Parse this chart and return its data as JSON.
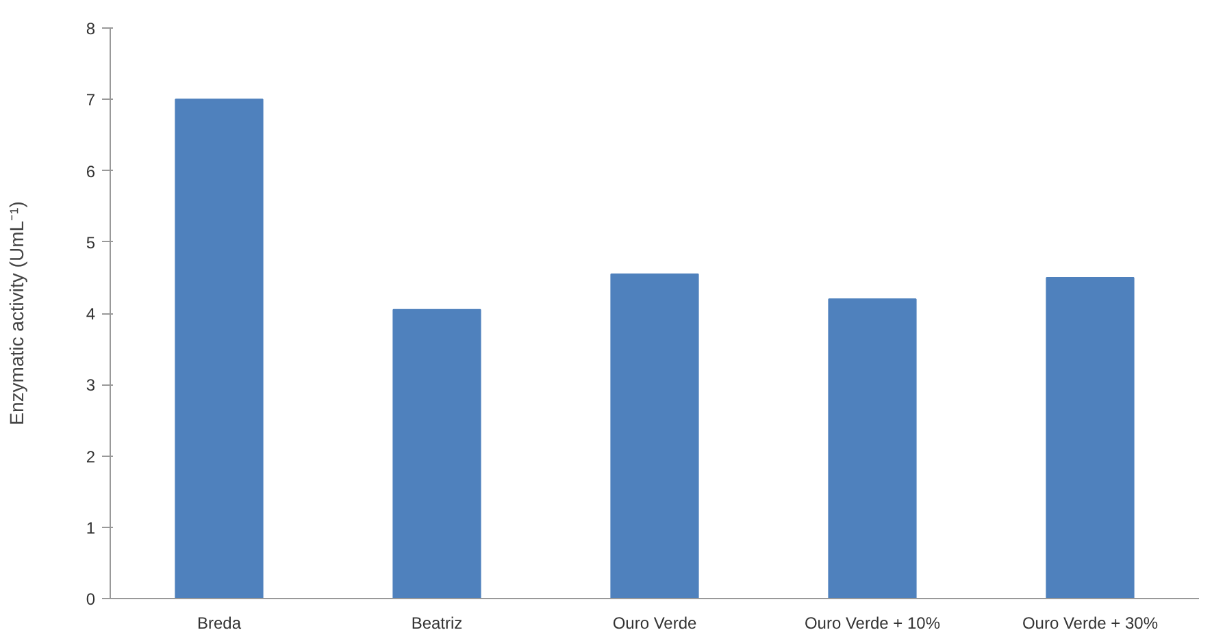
{
  "chart_data": {
    "type": "bar",
    "ylabel": "Enzymatic activity (UmL⁻¹)",
    "categories": [
      "Breda",
      "Beatriz",
      "Ouro Verde",
      "Ouro Verde + 10%",
      "Ouro Verde + 30%"
    ],
    "values": [
      7.0,
      4.05,
      4.55,
      4.2,
      4.5
    ],
    "color": "#4f81bd",
    "ylim": [
      0,
      8
    ],
    "yticks": [
      0,
      1,
      2,
      3,
      4,
      5,
      6,
      7,
      8
    ],
    "grid": false
  }
}
